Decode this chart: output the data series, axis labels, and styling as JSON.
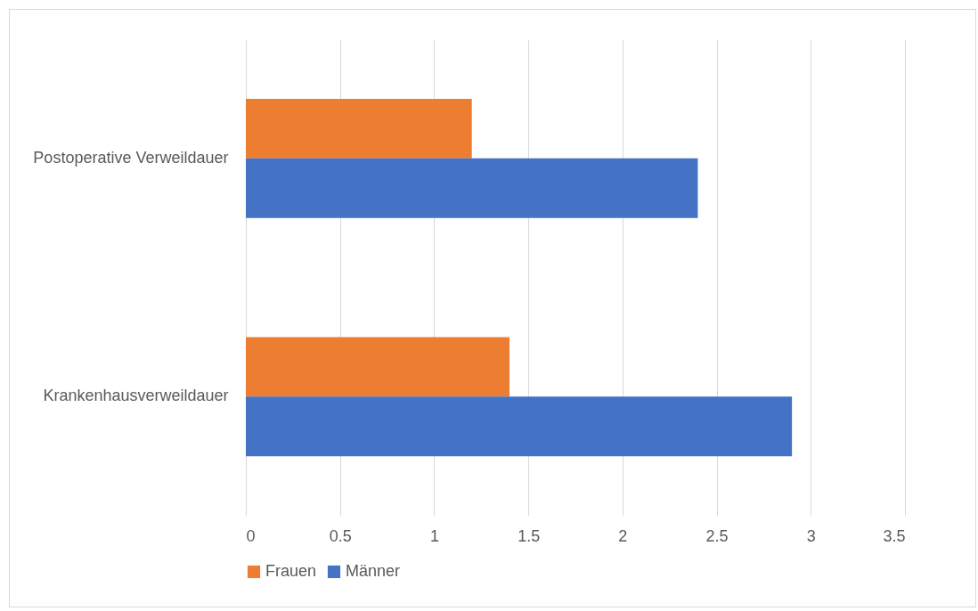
{
  "chart_data": {
    "type": "bar",
    "orientation": "horizontal",
    "categories": [
      "Postoperative Verweildauer",
      "Krankenhausverweildauer"
    ],
    "series": [
      {
        "name": "Frauen",
        "color": "#ed7d31",
        "values": [
          1.2,
          1.4
        ]
      },
      {
        "name": "Männer",
        "color": "#4472c4",
        "values": [
          2.4,
          2.9
        ]
      }
    ],
    "xlim": [
      0,
      3.5
    ],
    "xticks": [
      0,
      0.5,
      1,
      1.5,
      2,
      2.5,
      3,
      3.5
    ],
    "grid": "x",
    "legend": "bottom"
  }
}
